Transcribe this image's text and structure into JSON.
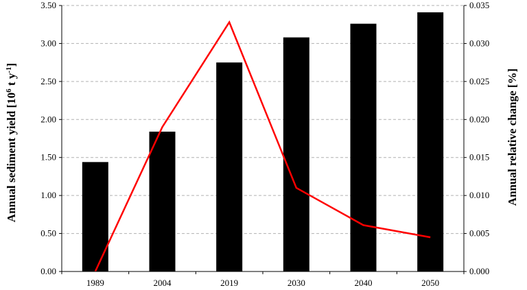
{
  "chart_data": {
    "type": "bar",
    "categories": [
      "1989",
      "2004",
      "2019",
      "2030",
      "2040",
      "2050"
    ],
    "series": [
      {
        "type": "bar",
        "axis": "left",
        "color": "#000000",
        "values": [
          1.44,
          1.84,
          2.75,
          3.08,
          3.26,
          3.41
        ]
      },
      {
        "type": "line",
        "axis": "right",
        "color": "#ff0000",
        "values": [
          0.0,
          0.019,
          0.0328,
          0.011,
          0.0061,
          0.0045
        ]
      }
    ],
    "ylabel": "Annual sediment yield [10",
    "ylabel_sup1": "6",
    "ylabel_mid": " t y",
    "ylabel_sup2": "-1",
    "ylabel_end": "]",
    "y2label": "Annual relative change [%]",
    "ylim": [
      0,
      3.5
    ],
    "y2lim": [
      0,
      0.035
    ],
    "yticks": [
      "0.00",
      "0.50",
      "1.00",
      "1.50",
      "2.00",
      "2.50",
      "3.00",
      "3.50"
    ],
    "y2ticks": [
      "0.000",
      "0.005",
      "0.010",
      "0.015",
      "0.020",
      "0.025",
      "0.030",
      "0.035"
    ],
    "grid": "horizontal-dashed"
  }
}
